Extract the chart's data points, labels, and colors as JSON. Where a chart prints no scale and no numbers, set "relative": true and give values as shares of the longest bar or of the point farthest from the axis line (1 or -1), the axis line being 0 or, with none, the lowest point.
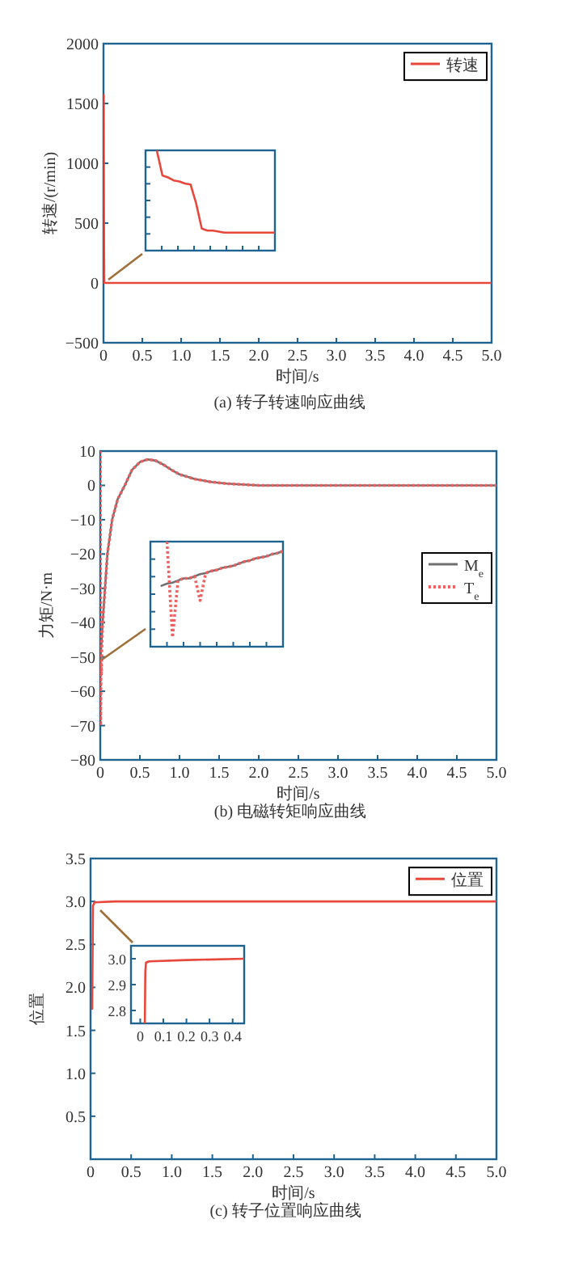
{
  "chart_data": [
    {
      "type": "line",
      "title": "(a) 转子转速响应曲线",
      "xlabel": "时间/s",
      "ylabel": "转速/(r/min)",
      "xlim": [
        0,
        5
      ],
      "ylim": [
        -500,
        2000
      ],
      "xticks": [
        0,
        0.5,
        {
          "value": 1,
          "label": "1.0"
        },
        1.5,
        {
          "value": 2,
          "label": "2.0"
        },
        2.5,
        {
          "value": 3,
          "label": "3.0"
        },
        3.5,
        {
          "value": 4,
          "label": "4.0"
        },
        4.5,
        {
          "value": 5,
          "label": "5.0"
        }
      ],
      "yticks": [
        {
          "value": -500,
          "label": "−500"
        },
        0,
        500,
        1000,
        1500,
        2000
      ],
      "legend": "top right",
      "series": [
        {
          "name": "转速",
          "color": "#e8473b",
          "x": [
            0,
            0.002,
            0.004,
            0.006,
            0.01,
            5
          ],
          "values": [
            0,
            1570,
            900,
            470,
            0,
            0
          ]
        }
      ]
    },
    {
      "type": "line",
      "relative": true,
      "categories": [
        null,
        null,
        null,
        null,
        null,
        null,
        null,
        null,
        null,
        null,
        null,
        null,
        null,
        null,
        null,
        null,
        null,
        null,
        null,
        null,
        null,
        null,
        null,
        null
      ],
      "series": [
        {
          "color": "#e8473b",
          "values": [
            null,
            null,
            1.0,
            0.75,
            0.73,
            0.7,
            0.69,
            0.67,
            0.66,
            0.47,
            0.22,
            0.2,
            0.2,
            0.19,
            0.18,
            0.18,
            0.18,
            0.18,
            0.18,
            0.18,
            0.18,
            0.18,
            0.18,
            0.18
          ]
        }
      ]
    },
    {
      "type": "line",
      "title": "(b) 电磁转矩响应曲线",
      "xlabel": "时间/s",
      "ylabel": "力矩/N·m",
      "xlim": [
        0,
        5
      ],
      "ylim": [
        -80,
        10
      ],
      "xticks": [
        0,
        0.5,
        {
          "value": 1,
          "label": "1.0"
        },
        1.5,
        {
          "value": 2,
          "label": "2.0"
        },
        2.5,
        {
          "value": 3,
          "label": "3.0"
        },
        3.5,
        {
          "value": 4,
          "label": "4.0"
        },
        4.5,
        {
          "value": 5,
          "label": "5.0"
        }
      ],
      "yticks": [
        {
          "value": -80,
          "label": "−80"
        },
        {
          "value": -70,
          "label": "−70"
        },
        {
          "value": -60,
          "label": "−60"
        },
        {
          "value": -50,
          "label": "−50"
        },
        {
          "value": -40,
          "label": "−40"
        },
        {
          "value": -30,
          "label": "−30"
        },
        {
          "value": -20,
          "label": "−20"
        },
        {
          "value": -10,
          "label": "−10"
        },
        0,
        10
      ],
      "legend": "right",
      "series": [
        {
          "name": "M$_{e}$",
          "color": "#707070",
          "line_style": "solid",
          "x": [
            0,
            0.03,
            0.09,
            0.15,
            0.22,
            0.31,
            0.4,
            0.5,
            0.6,
            0.7,
            0.8,
            0.9,
            1.0,
            1.2,
            1.4,
            1.6,
            2,
            5
          ],
          "values": [
            -52,
            -40,
            -20,
            -10,
            -4,
            0,
            4.5,
            6.8,
            7.6,
            7.2,
            6,
            4.5,
            3.2,
            1.8,
            1,
            0.5,
            0,
            0
          ]
        },
        {
          "name": "T$_{e}$",
          "color": "#f06060",
          "line_style": "dotted",
          "x": [
            0,
            0.005,
            0.01,
            0.015,
            0.02,
            0.03,
            0.09,
            0.15,
            0.22,
            0.31,
            0.4,
            0.5,
            0.6,
            0.7,
            0.8,
            0.9,
            1.0,
            1.2,
            1.4,
            1.6,
            2,
            5
          ],
          "values": [
            10,
            -70,
            -52,
            -55,
            -48,
            -40,
            -20,
            -10,
            -4,
            0,
            4.5,
            6.8,
            7.6,
            7.2,
            6,
            4.5,
            3.2,
            1.8,
            1,
            0.5,
            0,
            0
          ]
        }
      ]
    },
    {
      "type": "line",
      "relative": true,
      "categories": [
        null,
        null,
        null,
        null,
        null,
        null,
        null,
        null,
        null,
        null,
        null,
        null,
        null,
        null,
        null,
        null,
        null,
        null,
        null,
        null,
        null,
        null,
        null,
        null,
        null
      ],
      "series": [
        {
          "color": "#707070",
          "line_style": "solid",
          "values": [
            null,
            null,
            0.58,
            0.6,
            0.61,
            0.63,
            0.65,
            0.65,
            0.67,
            0.69,
            0.7,
            0.72,
            0.73,
            0.75,
            0.76,
            0.77,
            0.79,
            0.81,
            0.82,
            0.84,
            0.85,
            0.86,
            0.88,
            0.89,
            0.91
          ]
        },
        {
          "color": "#f06060",
          "line_style": "dotted",
          "values": [
            null,
            null,
            null,
            1.0,
            0.09,
            0.63,
            0.65,
            0.65,
            0.67,
            0.44,
            0.7,
            0.72,
            0.73,
            0.75,
            0.76,
            0.77,
            0.79,
            0.81,
            0.82,
            0.84,
            0.85,
            0.86,
            0.88,
            0.89,
            0.91
          ]
        }
      ]
    },
    {
      "type": "line",
      "title": "(c) 转子位置响应曲线",
      "xlabel": "时间/s",
      "ylabel": "位置",
      "xlim": [
        0,
        5
      ],
      "ylim": [
        0,
        3.5
      ],
      "xticks": [
        0,
        0.5,
        {
          "value": 1,
          "label": "1.0"
        },
        1.5,
        {
          "value": 2,
          "label": "2.0"
        },
        2.5,
        {
          "value": 3,
          "label": "3.0"
        },
        3.5,
        {
          "value": 4,
          "label": "4.0"
        },
        4.5,
        {
          "value": 5,
          "label": "5.0"
        }
      ],
      "yticks": [
        0.5,
        {
          "value": 1,
          "label": "1.0"
        },
        1.5,
        {
          "value": 2,
          "label": "2.0"
        },
        2.5,
        {
          "value": 3,
          "label": "3.0"
        },
        3.5
      ],
      "legend": "top right",
      "series": [
        {
          "name": "位置",
          "color": "#e8473b",
          "x": [
            0.02,
            0.03,
            0.05,
            0.3,
            5
          ],
          "values": [
            1.75,
            2.95,
            2.99,
            3.0,
            3.0
          ]
        }
      ]
    },
    {
      "type": "line",
      "xlim": [
        -0.04,
        0.45
      ],
      "ylim": [
        2.75,
        3.05
      ],
      "xticks": [
        0,
        0.1,
        0.2,
        0.3,
        0.4
      ],
      "yticks": [
        2.8,
        2.9,
        {
          "value": 3,
          "label": "3.0"
        }
      ],
      "series": [
        {
          "color": "#e8473b",
          "x": [
            0.02,
            0.022,
            0.025,
            0.04,
            0.2,
            0.45
          ],
          "values": [
            2.75,
            2.95,
            2.985,
            2.99,
            2.995,
            3.0
          ]
        }
      ]
    }
  ]
}
